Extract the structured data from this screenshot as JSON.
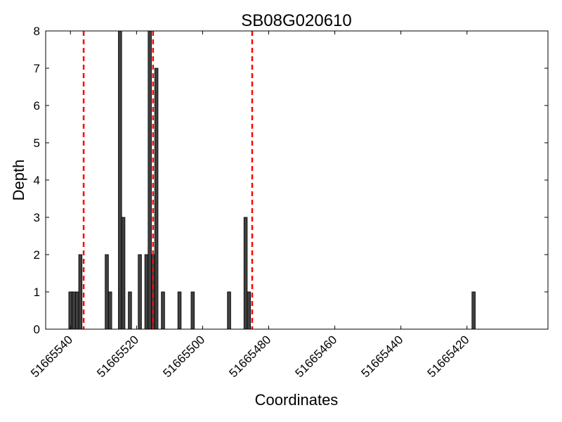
{
  "chart_data": {
    "type": "bar",
    "title": "SB08G020610",
    "xlabel": "Coordinates",
    "ylabel": "Depth",
    "x_axis_reversed": true,
    "xlim": [
      51665547,
      51665395
    ],
    "ylim": [
      0,
      8
    ],
    "x_ticks": [
      51665540,
      51665520,
      51665500,
      51665480,
      51665460,
      51665440,
      51665420
    ],
    "y_ticks": [
      0,
      1,
      2,
      3,
      4,
      5,
      6,
      7,
      8
    ],
    "bar_color": "#404040",
    "marker_color": "#ff0000",
    "grid": false,
    "markers": [
      51665536,
      51665515,
      51665485
    ],
    "bars": [
      {
        "x": 51665540,
        "y": 1
      },
      {
        "x": 51665539,
        "y": 1
      },
      {
        "x": 51665538,
        "y": 1
      },
      {
        "x": 51665537,
        "y": 2
      },
      {
        "x": 51665529,
        "y": 2
      },
      {
        "x": 51665528,
        "y": 1
      },
      {
        "x": 51665525,
        "y": 8
      },
      {
        "x": 51665524,
        "y": 3
      },
      {
        "x": 51665522,
        "y": 1
      },
      {
        "x": 51665519,
        "y": 2
      },
      {
        "x": 51665517,
        "y": 2
      },
      {
        "x": 51665516,
        "y": 8
      },
      {
        "x": 51665515,
        "y": 2
      },
      {
        "x": 51665514,
        "y": 7
      },
      {
        "x": 51665512,
        "y": 1
      },
      {
        "x": 51665507,
        "y": 1
      },
      {
        "x": 51665503,
        "y": 1
      },
      {
        "x": 51665492,
        "y": 1
      },
      {
        "x": 51665487,
        "y": 3
      },
      {
        "x": 51665486,
        "y": 1
      },
      {
        "x": 51665418,
        "y": 1
      }
    ]
  }
}
